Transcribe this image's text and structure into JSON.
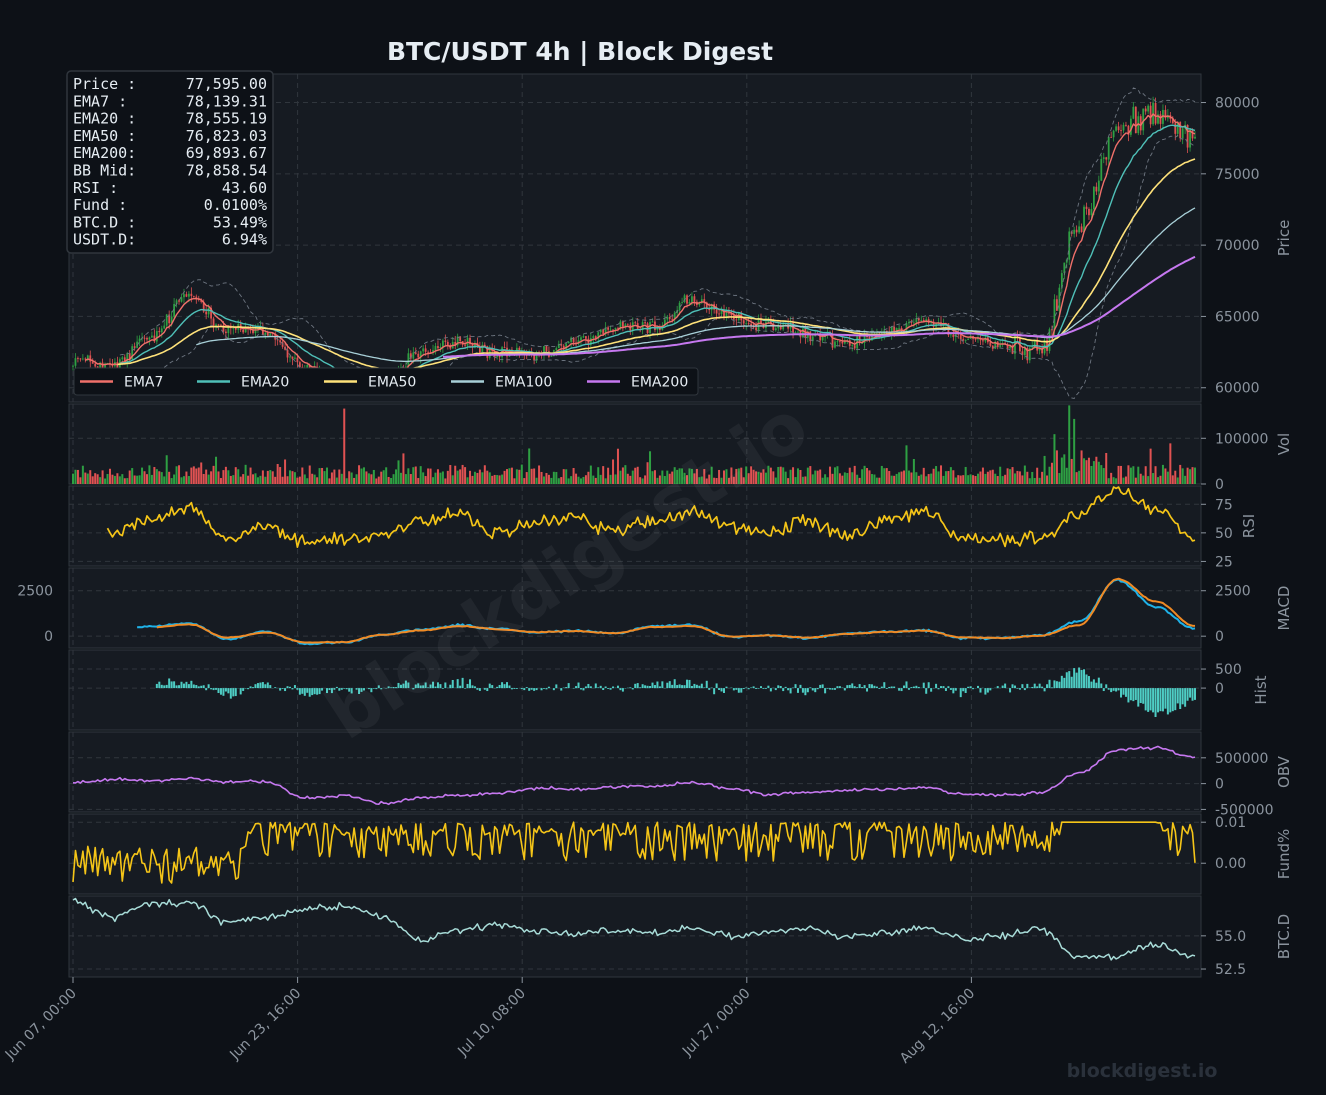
{
  "title": "BTC/USDT  4h  |  Block Digest",
  "watermark": "blockdigest.io",
  "footer_brand": "blockdigest.io",
  "colors": {
    "background": "#0d1117",
    "panel": "#161b22",
    "grid": "#30363d",
    "candle_up": "#2ea043",
    "candle_down": "#e05252",
    "ema7": "#f0706a",
    "ema20": "#4fc0b8",
    "ema50": "#ffe27a",
    "ema100": "#a8d0d8",
    "ema200": "#c678f0",
    "rsi": "#f5c518",
    "macd": "#1fb2e8",
    "signal": "#f08a24",
    "hist": "#4ecdc4",
    "obv": "#c678f0",
    "funding": "#f5c518",
    "btcd": "#a8dcd8"
  },
  "info_box": [
    {
      "label": "Price :",
      "value": "77,595.00"
    },
    {
      "label": "EMA7  :",
      "value": "78,139.31"
    },
    {
      "label": "EMA20 :",
      "value": "78,555.19"
    },
    {
      "label": "EMA50 :",
      "value": "76,823.03"
    },
    {
      "label": "EMA200:",
      "value": "69,893.67"
    },
    {
      "label": "BB Mid:",
      "value": "78,858.54"
    },
    {
      "label": "RSI   :",
      "value": "43.60"
    },
    {
      "label": "Fund  :",
      "value": "0.0100%"
    },
    {
      "label": "BTC.D :",
      "value": "53.49%"
    },
    {
      "label": "USDT.D:",
      "value": "6.94%"
    }
  ],
  "legend": [
    {
      "name": "EMA7",
      "color": "#f0706a"
    },
    {
      "name": "EMA20",
      "color": "#4fc0b8"
    },
    {
      "name": "EMA50",
      "color": "#ffe27a"
    },
    {
      "name": "EMA100",
      "color": "#a8d0d8"
    },
    {
      "name": "EMA200",
      "color": "#c678f0"
    }
  ],
  "x_ticks": [
    "Jun 07, 00:00",
    "Jun 23, 16:00",
    "Jul 10, 08:00",
    "Jul 27, 00:00",
    "Aug 12, 16:00"
  ],
  "panels": {
    "price": {
      "ylabel": "Price",
      "ticks": [
        "80000",
        "75000",
        "70000",
        "65000",
        "60000"
      ],
      "ylim": [
        59000,
        82000
      ]
    },
    "vol": {
      "ylabel": "Vol",
      "ticks": [
        "100000",
        "0"
      ],
      "ylim": [
        0,
        175000
      ]
    },
    "rsi": {
      "ylabel": "RSI",
      "ticks": [
        "75",
        "50",
        "25"
      ],
      "ylim": [
        21,
        91
      ]
    },
    "macd": {
      "ylabel": "MACD",
      "ticks_right": [
        "2500",
        "0"
      ],
      "ticks_left": [
        "2500",
        "0"
      ],
      "ylim": [
        -650,
        3750
      ]
    },
    "hist": {
      "ylabel": "Hist",
      "ticks": [
        "500",
        "0"
      ],
      "ylim": [
        -1100,
        1000
      ]
    },
    "obv": {
      "ylabel": "OBV",
      "ticks": [
        "500000",
        "0",
        "-500000"
      ],
      "ylim": [
        -550000,
        1000000
      ]
    },
    "fund": {
      "ylabel": "Fund%",
      "ticks": [
        "0.01",
        "0.00"
      ],
      "ylim": [
        -0.0075,
        0.012
      ]
    },
    "btcd": {
      "ylabel": "BTC.D",
      "ticks": [
        "55.0",
        "52.5"
      ],
      "ylim": [
        51.9,
        58.0
      ]
    }
  },
  "chart_data": {
    "type": "line",
    "title": "BTC/USDT  4h  |  Block Digest",
    "x_range": [
      "Jun 07, 00:00",
      "Aug 21, 16:00"
    ],
    "price_anchors": {
      "x": [
        "Jun 07",
        "Jun 09",
        "Jun 12",
        "Jun 14",
        "Jun 17",
        "Jun 20",
        "Jun 23",
        "Jun 26",
        "Jun 28",
        "Jul 01",
        "Jul 03",
        "Jul 06",
        "Jul 09",
        "Jul 12",
        "Jul 15",
        "Jul 18",
        "Jul 20",
        "Jul 23",
        "Jul 26",
        "Jul 29",
        "Aug 01",
        "Aug 04",
        "Aug 07",
        "Aug 10",
        "Aug 13",
        "Aug 15",
        "Aug 17",
        "Aug 18",
        "Aug 20",
        "Aug 21"
      ],
      "close": [
        62000,
        61500,
        63500,
        66500,
        64200,
        63800,
        61500,
        60200,
        60500,
        62500,
        63200,
        62400,
        62200,
        63200,
        64200,
        64300,
        66200,
        64800,
        64500,
        63700,
        63200,
        64000,
        64800,
        63700,
        63000,
        62500,
        71500,
        78000,
        79500,
        77595
      ]
    },
    "ema_last": {
      "EMA7": 78139.31,
      "EMA20": 78555.19,
      "EMA50": 76823.03,
      "EMA100": 73500,
      "EMA200": 69893.67
    },
    "rsi_anchors": [
      56,
      52,
      62,
      70,
      46,
      55,
      42,
      45,
      48,
      60,
      66,
      50,
      58,
      64,
      52,
      60,
      68,
      55,
      50,
      60,
      48,
      62,
      68,
      46,
      44,
      45,
      66,
      88,
      70,
      43.6
    ],
    "macd_anchors": [
      0,
      150,
      550,
      700,
      -150,
      250,
      -400,
      -350,
      100,
      350,
      600,
      400,
      200,
      300,
      150,
      550,
      600,
      -50,
      50,
      -100,
      150,
      250,
      300,
      -100,
      -100,
      50,
      800,
      3100,
      1600,
      400
    ],
    "signal_anchors": [
      0,
      120,
      480,
      650,
      -80,
      200,
      -350,
      -320,
      80,
      320,
      550,
      380,
      220,
      280,
      170,
      500,
      560,
      -20,
      40,
      -80,
      130,
      230,
      300,
      -60,
      -100,
      30,
      600,
      3150,
      1900,
      550
    ],
    "obv_anchors": [
      20000,
      80000,
      50000,
      90000,
      40000,
      30000,
      -280000,
      -240000,
      -380000,
      -280000,
      -220000,
      -180000,
      -80000,
      -120000,
      -60000,
      -50000,
      20000,
      -100000,
      -220000,
      -170000,
      -130000,
      -100000,
      -80000,
      -200000,
      -220000,
      -170000,
      200000,
      650000,
      700000,
      500000
    ],
    "funding_range": [
      -0.0057,
      0.01
    ],
    "btcd_anchors": [
      57.6,
      56.4,
      57.4,
      57.5,
      56.0,
      56.4,
      57.0,
      57.2,
      56.5,
      54.6,
      55.5,
      55.8,
      55.4,
      55.2,
      55.4,
      55.3,
      55.6,
      55.0,
      55.3,
      55.6,
      54.9,
      55.2,
      55.6,
      54.8,
      55.0,
      55.5,
      53.3,
      53.5,
      54.3,
      53.49
    ],
    "last": {
      "price": 77595.0,
      "rsi": 43.6,
      "funding_pct": 0.01,
      "btc_d": 53.49,
      "usdt_d": 6.94
    }
  }
}
